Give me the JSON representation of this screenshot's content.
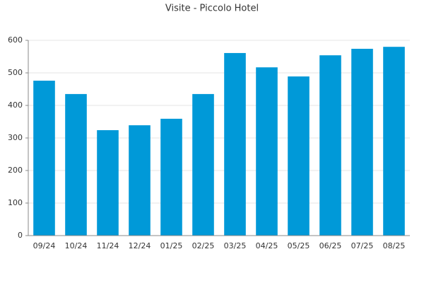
{
  "chart_data": {
    "type": "bar",
    "title": "Visite - Piccolo Hotel",
    "categories": [
      "09/24",
      "10/24",
      "11/24",
      "12/24",
      "01/25",
      "02/25",
      "03/25",
      "04/25",
      "05/25",
      "06/25",
      "07/25",
      "08/25"
    ],
    "values": [
      476,
      435,
      324,
      339,
      359,
      435,
      561,
      517,
      489,
      554,
      574,
      580
    ],
    "color": "#0099d8",
    "ylim": [
      0,
      600
    ],
    "yticks": [
      0,
      100,
      200,
      300,
      400,
      500,
      600
    ],
    "grid": true
  }
}
